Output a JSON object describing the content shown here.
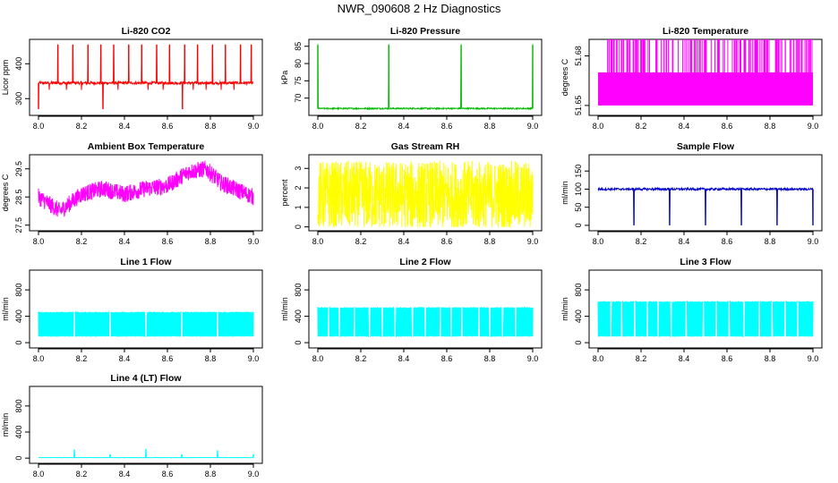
{
  "figure": {
    "title": "NWR_090608  2 Hz Diagnostics"
  },
  "chart_data": [
    {
      "id": "co2",
      "type": "line",
      "title": "Li-820 CO2",
      "ylabel": "Licor ppm",
      "color": "#ff0000",
      "xlim": [
        8.0,
        9.0
      ],
      "ylim": [
        252,
        470
      ],
      "xticks": [
        "8.0",
        "8.2",
        "8.4",
        "8.6",
        "8.8",
        "9.0"
      ],
      "yticks": [
        {
          "v": 300,
          "label": "300"
        },
        {
          "v": 400,
          "label": "400"
        }
      ],
      "series": [
        {
          "name": "CO2",
          "baseline": 345,
          "noise": 4,
          "spikes_up": [
            8.09,
            8.16,
            8.23,
            8.29,
            8.35,
            8.42,
            8.48,
            8.55,
            8.61,
            8.68,
            8.74,
            8.81,
            8.87,
            8.94,
            8.99
          ],
          "spike_up_value": 455,
          "spikes_down": [
            8.0,
            8.3,
            8.67
          ],
          "spike_down_value": 270,
          "small_dips": [
            8.05,
            8.13,
            8.2,
            8.37,
            8.51,
            8.58,
            8.72,
            8.78,
            8.85,
            8.91
          ],
          "dip_value": 325
        }
      ]
    },
    {
      "id": "pressure",
      "type": "line",
      "title": "Li-820 Pressure",
      "ylabel": "kPa",
      "color": "#00bb00",
      "xlim": [
        8.0,
        9.0
      ],
      "ylim": [
        65,
        87
      ],
      "xticks": [
        "8.0",
        "8.2",
        "8.4",
        "8.6",
        "8.8",
        "9.0"
      ],
      "yticks": [
        {
          "v": 70,
          "label": "70"
        },
        {
          "v": 75,
          "label": "75"
        },
        {
          "v": 80,
          "label": "80"
        },
        {
          "v": 85,
          "label": "85"
        }
      ],
      "series": [
        {
          "name": "Pressure",
          "baseline": 67,
          "noise": 0.2,
          "spikes_up": [
            8.0,
            8.33,
            8.667,
            9.0
          ],
          "spike_up_value": 85.5
        }
      ]
    },
    {
      "id": "temperature",
      "type": "line",
      "title": "Li-820 Temperature",
      "ylabel": "degrees C",
      "color": "#ff00ff",
      "xlim": [
        8.0,
        9.0
      ],
      "ylim": [
        51.644,
        51.69
      ],
      "xticks": [
        "8.0",
        "8.2",
        "8.4",
        "8.6",
        "8.8",
        "9.0"
      ],
      "yticks": [
        {
          "v": 51.65,
          "label": "51.65"
        },
        {
          "v": 51.68,
          "label": "51.68"
        }
      ],
      "series": [
        {
          "name": "Temperature",
          "low": 51.65,
          "high": 51.67,
          "flicker_high": 51.69
        }
      ]
    },
    {
      "id": "ambient",
      "type": "line",
      "title": "Ambient Box Temperature",
      "ylabel": "degrees C",
      "color": "#ff00ff",
      "xlim": [
        8.0,
        9.0
      ],
      "ylim": [
        27.3,
        30.0
      ],
      "xticks": [
        "8.0",
        "8.2",
        "8.4",
        "8.6",
        "8.8",
        "9.0"
      ],
      "yticks": [
        {
          "v": 27.5,
          "label": "27.5"
        },
        {
          "v": 28.5,
          "label": "28.5"
        },
        {
          "v": 29.5,
          "label": "29.5"
        }
      ],
      "series": [
        {
          "name": "Ambient",
          "trend": [
            [
              8.0,
              28.5
            ],
            [
              8.1,
              28.0
            ],
            [
              8.2,
              28.6
            ],
            [
              8.3,
              28.8
            ],
            [
              8.4,
              28.6
            ],
            [
              8.5,
              28.8
            ],
            [
              8.6,
              28.9
            ],
            [
              8.7,
              29.4
            ],
            [
              8.78,
              29.5
            ],
            [
              8.85,
              29.0
            ],
            [
              9.0,
              28.5
            ]
          ],
          "noise": 0.3
        }
      ]
    },
    {
      "id": "rh",
      "type": "line",
      "title": "Gas Stream RH",
      "ylabel": "percent",
      "color": "#ffff00",
      "xlim": [
        8.0,
        9.0
      ],
      "ylim": [
        -0.2,
        3.7
      ],
      "xticks": [
        "8.0",
        "8.2",
        "8.4",
        "8.6",
        "8.8",
        "9.0"
      ],
      "yticks": [
        {
          "v": 0,
          "label": "0"
        },
        {
          "v": 1,
          "label": "1"
        },
        {
          "v": 2,
          "label": "2"
        },
        {
          "v": 3,
          "label": "3"
        }
      ],
      "series": [
        {
          "name": "RH",
          "baseline": 1.6,
          "noise": 1.8
        }
      ]
    },
    {
      "id": "sampleflow",
      "type": "line",
      "title": "Sample Flow",
      "ylabel": "ml/min",
      "color": "#0000cc",
      "xlim": [
        8.0,
        9.0
      ],
      "ylim": [
        -15,
        195
      ],
      "xticks": [
        "8.0",
        "8.2",
        "8.4",
        "8.6",
        "8.8",
        "9.0"
      ],
      "yticks": [
        {
          "v": 0,
          "label": "0"
        },
        {
          "v": 50,
          "label": "50"
        },
        {
          "v": 100,
          "label": "100"
        },
        {
          "v": 150,
          "label": "150"
        }
      ],
      "series": [
        {
          "name": "Sample Flow",
          "baseline": 100,
          "noise": 3,
          "spikes_down": [
            8.167,
            8.333,
            8.5,
            8.667,
            8.833,
            9.0
          ],
          "spike_down_value": 0
        }
      ]
    },
    {
      "id": "line1",
      "type": "line",
      "title": "Line 1 Flow",
      "ylabel": "ml/min",
      "color": "#00ffff",
      "xlim": [
        8.0,
        9.0
      ],
      "ylim": [
        -80,
        1100
      ],
      "xticks": [
        "8.0",
        "8.2",
        "8.4",
        "8.6",
        "8.8",
        "9.0"
      ],
      "yticks": [
        {
          "v": 0,
          "label": "0"
        },
        {
          "v": 400,
          "label": "400"
        },
        {
          "v": 800,
          "label": "800"
        }
      ],
      "series": [
        {
          "name": "Line 1",
          "band_low": 90,
          "band_high": 470,
          "gaps": [
            8.167,
            8.333,
            8.5,
            8.667,
            8.833
          ]
        }
      ]
    },
    {
      "id": "line2",
      "type": "line",
      "title": "Line 2 Flow",
      "ylabel": "ml/min",
      "color": "#00ffff",
      "xlim": [
        8.0,
        9.0
      ],
      "ylim": [
        -80,
        1100
      ],
      "xticks": [
        "8.0",
        "8.2",
        "8.4",
        "8.6",
        "8.8",
        "9.0"
      ],
      "yticks": [
        {
          "v": 0,
          "label": "0"
        },
        {
          "v": 400,
          "label": "400"
        },
        {
          "v": 800,
          "label": "800"
        }
      ],
      "series": [
        {
          "name": "Line 2",
          "band_low": 90,
          "band_high": 540,
          "gaps": [
            8.05,
            8.1,
            8.17,
            8.24,
            8.3,
            8.36,
            8.44,
            8.5,
            8.57,
            8.62,
            8.67,
            8.75,
            8.8,
            8.86,
            8.92
          ]
        }
      ]
    },
    {
      "id": "line3",
      "type": "line",
      "title": "Line 3 Flow",
      "ylabel": "ml/min",
      "color": "#00ffff",
      "xlim": [
        8.0,
        9.0
      ],
      "ylim": [
        -80,
        1100
      ],
      "xticks": [
        "8.0",
        "8.2",
        "8.4",
        "8.6",
        "8.8",
        "9.0"
      ],
      "yticks": [
        {
          "v": 0,
          "label": "0"
        },
        {
          "v": 400,
          "label": "400"
        },
        {
          "v": 800,
          "label": "800"
        }
      ],
      "series": [
        {
          "name": "Line 3",
          "band_low": 90,
          "band_high": 630,
          "gaps": [
            8.06,
            8.11,
            8.17,
            8.23,
            8.28,
            8.34,
            8.41,
            8.49,
            8.55,
            8.61,
            8.68,
            8.75,
            8.81,
            8.87,
            8.93
          ]
        }
      ]
    },
    {
      "id": "line4",
      "type": "line",
      "title": "Line 4 (LT) Flow",
      "ylabel": "ml/min",
      "color": "#00ffff",
      "xlim": [
        8.0,
        9.0
      ],
      "ylim": [
        -80,
        1100
      ],
      "xticks": [
        "8.0",
        "8.2",
        "8.4",
        "8.6",
        "8.8",
        "9.0"
      ],
      "yticks": [
        {
          "v": 0,
          "label": "0"
        },
        {
          "v": 400,
          "label": "400"
        },
        {
          "v": 800,
          "label": "800"
        }
      ],
      "series": [
        {
          "name": "Line 4",
          "baseline": 8,
          "noise": 2,
          "spikes_up": [
            8.167,
            8.333,
            8.5,
            8.667,
            8.833,
            9.0
          ],
          "spike_up_values": [
            130,
            60,
            140,
            60,
            120,
            60
          ]
        }
      ]
    }
  ]
}
